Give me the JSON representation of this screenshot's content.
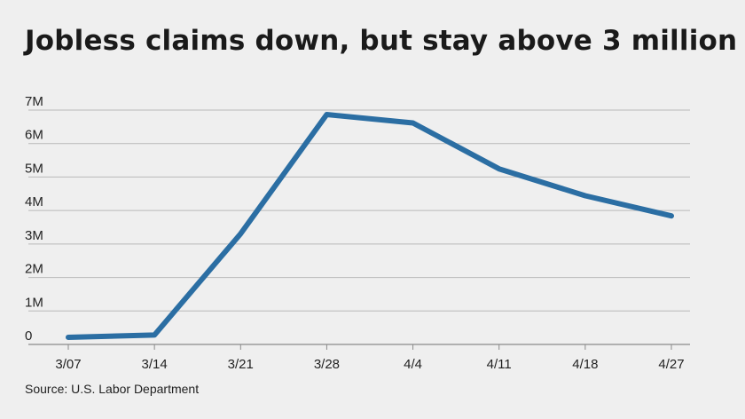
{
  "chart_data": {
    "type": "line",
    "title": "Jobless claims down, but stay above 3 million",
    "categories": [
      "3/07",
      "3/14",
      "3/21",
      "3/28",
      "4/4",
      "4/11",
      "4/18",
      "4/27"
    ],
    "series": [
      {
        "values": [
          211000,
          282000,
          3307000,
          6867000,
          6615000,
          5245000,
          4442000,
          3839000
        ]
      }
    ],
    "y_ticks": [
      0,
      1000000,
      2000000,
      3000000,
      4000000,
      5000000,
      6000000,
      7000000
    ],
    "y_tick_labels": [
      "0",
      "1M",
      "2M",
      "3M",
      "4M",
      "5M",
      "6M",
      "7M"
    ],
    "ylim": [
      0,
      7000000
    ],
    "xlabel": "",
    "ylabel": "",
    "grid": true,
    "line_color": "#2b6ea3",
    "source": "Source: U.S. Labor Department"
  }
}
